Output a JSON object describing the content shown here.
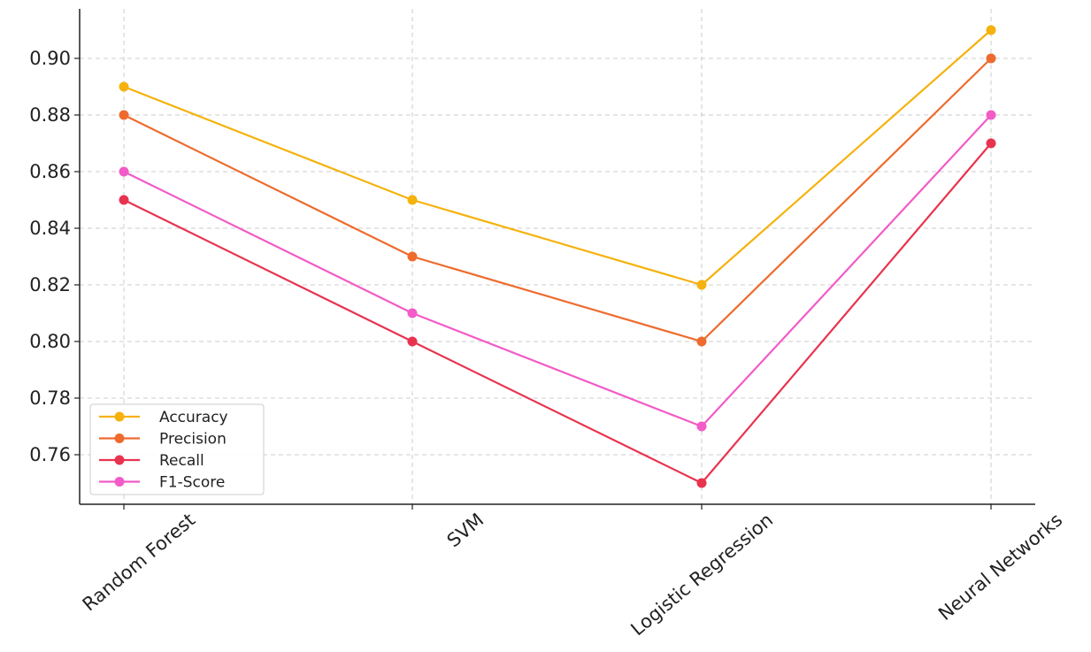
{
  "chart_data": {
    "type": "line",
    "title": "",
    "xlabel": "",
    "ylabel": "",
    "categories": [
      "Random Forest",
      "SVM",
      "Logistic Regression",
      "Neural Networks"
    ],
    "yticks": [
      "0.76",
      "0.78",
      "0.80",
      "0.82",
      "0.84",
      "0.86",
      "0.88",
      "0.90"
    ],
    "ylim": [
      0.7425,
      0.9175
    ],
    "grid": true,
    "legend_position": "lower-left",
    "series": [
      {
        "name": "Accuracy",
        "color": "#f5b20d",
        "values": [
          0.89,
          0.85,
          0.82,
          0.91
        ]
      },
      {
        "name": "Precision",
        "color": "#ee6b2d",
        "values": [
          0.88,
          0.83,
          0.8,
          0.9
        ]
      },
      {
        "name": "Recall",
        "color": "#e8334f",
        "values": [
          0.85,
          0.8,
          0.75,
          0.87
        ]
      },
      {
        "name": "F1-Score",
        "color": "#f25bc8",
        "values": [
          0.86,
          0.81,
          0.77,
          0.88
        ]
      }
    ]
  }
}
